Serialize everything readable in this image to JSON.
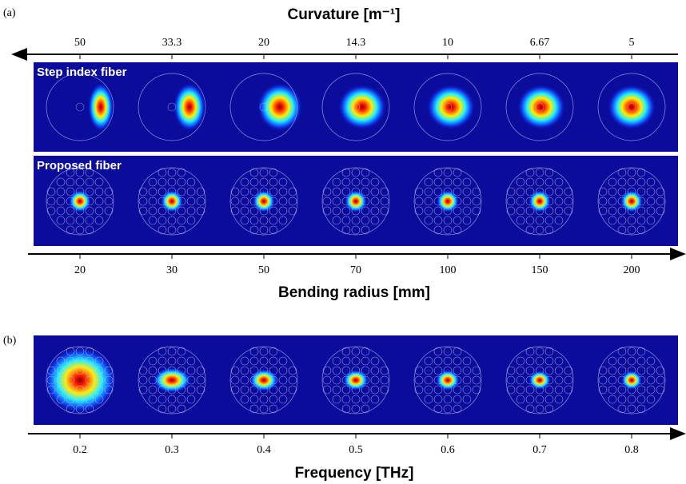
{
  "panel_a": {
    "label": "(a)",
    "top_axis": {
      "title": "Curvature",
      "unit": "[m⁻¹]",
      "ticks": [
        "50",
        "33.3",
        "20",
        "14.3",
        "10",
        "6.67",
        "5"
      ]
    },
    "rows": [
      {
        "label": "Step index fiber"
      },
      {
        "label": "Proposed fiber"
      }
    ],
    "bottom_axis": {
      "title": "Bending radius",
      "unit": "[mm]",
      "ticks": [
        "20",
        "30",
        "50",
        "70",
        "100",
        "150",
        "200"
      ]
    }
  },
  "panel_b": {
    "label": "(b)",
    "axis": {
      "title": "Frequency",
      "unit": "[THz]",
      "ticks": [
        "0.2",
        "0.3",
        "0.4",
        "0.5",
        "0.6",
        "0.7",
        "0.8"
      ]
    }
  }
}
